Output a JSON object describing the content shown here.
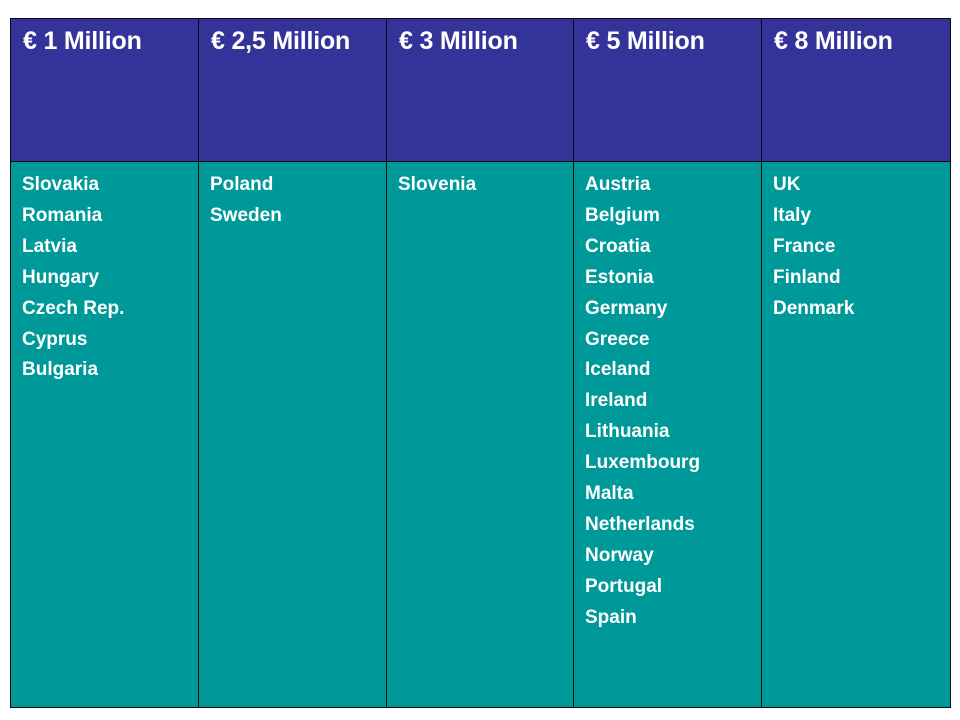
{
  "tiers": [
    {
      "header": "€ 1 Million",
      "countries": [
        "Slovakia",
        "Romania",
        "Latvia",
        "Hungary",
        "Czech Rep.",
        "Cyprus",
        "Bulgaria"
      ]
    },
    {
      "header": "€ 2,5 Million",
      "countries": [
        "Poland",
        "Sweden"
      ]
    },
    {
      "header": "€ 3 Million",
      "countries": [
        "Slovenia"
      ]
    },
    {
      "header": "€ 5 Million",
      "countries": [
        "Austria",
        "Belgium",
        "Croatia",
        "Estonia",
        "Germany",
        "Greece",
        "Iceland",
        "Ireland",
        "Lithuania",
        "Luxembourg",
        "Malta",
        "Netherlands",
        "Norway",
        "Portugal",
        "Spain"
      ]
    },
    {
      "header": "€ 8 Million",
      "countries": [
        "UK",
        "Italy",
        "France",
        "Finland",
        "Denmark"
      ]
    }
  ],
  "colors": {
    "header_bg": "#333399",
    "body_bg": "#009999",
    "text": "#ffffff",
    "border": "#0a0a0a"
  }
}
